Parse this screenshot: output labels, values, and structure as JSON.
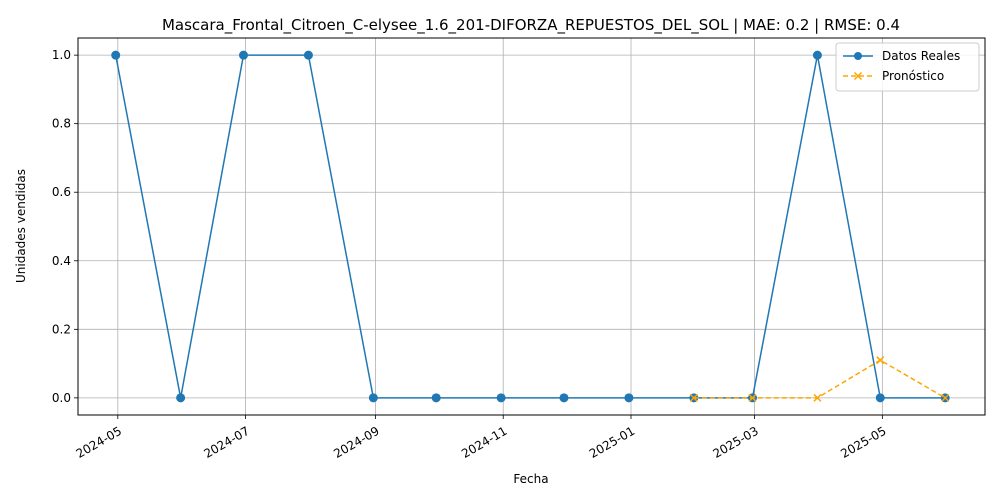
{
  "chart_data": {
    "type": "line",
    "title": "Mascara_Frontal_Citroen_C-elysee_1.6_201-DIFORZA_REPUESTOS_DEL_SOL | MAE: 0.2 | RMSE: 0.4",
    "xlabel": "Fecha",
    "ylabel": "Unidades vendidas",
    "ylim": [
      -0.05,
      1.05
    ],
    "xlim": [
      "2024-04-12",
      "2025-06-19"
    ],
    "grid": true,
    "legend_position": "top-right",
    "x_ticks": [
      "2024-05",
      "2024-07",
      "2024-09",
      "2024-11",
      "2025-01",
      "2025-03",
      "2025-05"
    ],
    "y_ticks": [
      "0.0",
      "0.2",
      "0.4",
      "0.6",
      "0.8",
      "1.0"
    ],
    "series": [
      {
        "name": "Datos Reales",
        "color": "#1f77b4",
        "marker": "circle",
        "line_style": "solid",
        "x": [
          "2024-04-30",
          "2024-05-31",
          "2024-06-30",
          "2024-07-31",
          "2024-08-31",
          "2024-09-30",
          "2024-10-31",
          "2024-11-30",
          "2024-12-31",
          "2025-01-31",
          "2025-02-28",
          "2025-03-31",
          "2025-04-30",
          "2025-05-31"
        ],
        "values": [
          1,
          0,
          1,
          1,
          0,
          0,
          0,
          0,
          0,
          0,
          0,
          1,
          0,
          0
        ]
      },
      {
        "name": "Pronóstico",
        "color": "#ffa500",
        "marker": "x",
        "line_style": "dashed",
        "x": [
          "2025-01-31",
          "2025-02-28",
          "2025-03-31",
          "2025-04-30",
          "2025-05-31"
        ],
        "values": [
          0,
          0,
          0,
          0.11,
          0
        ]
      }
    ]
  }
}
